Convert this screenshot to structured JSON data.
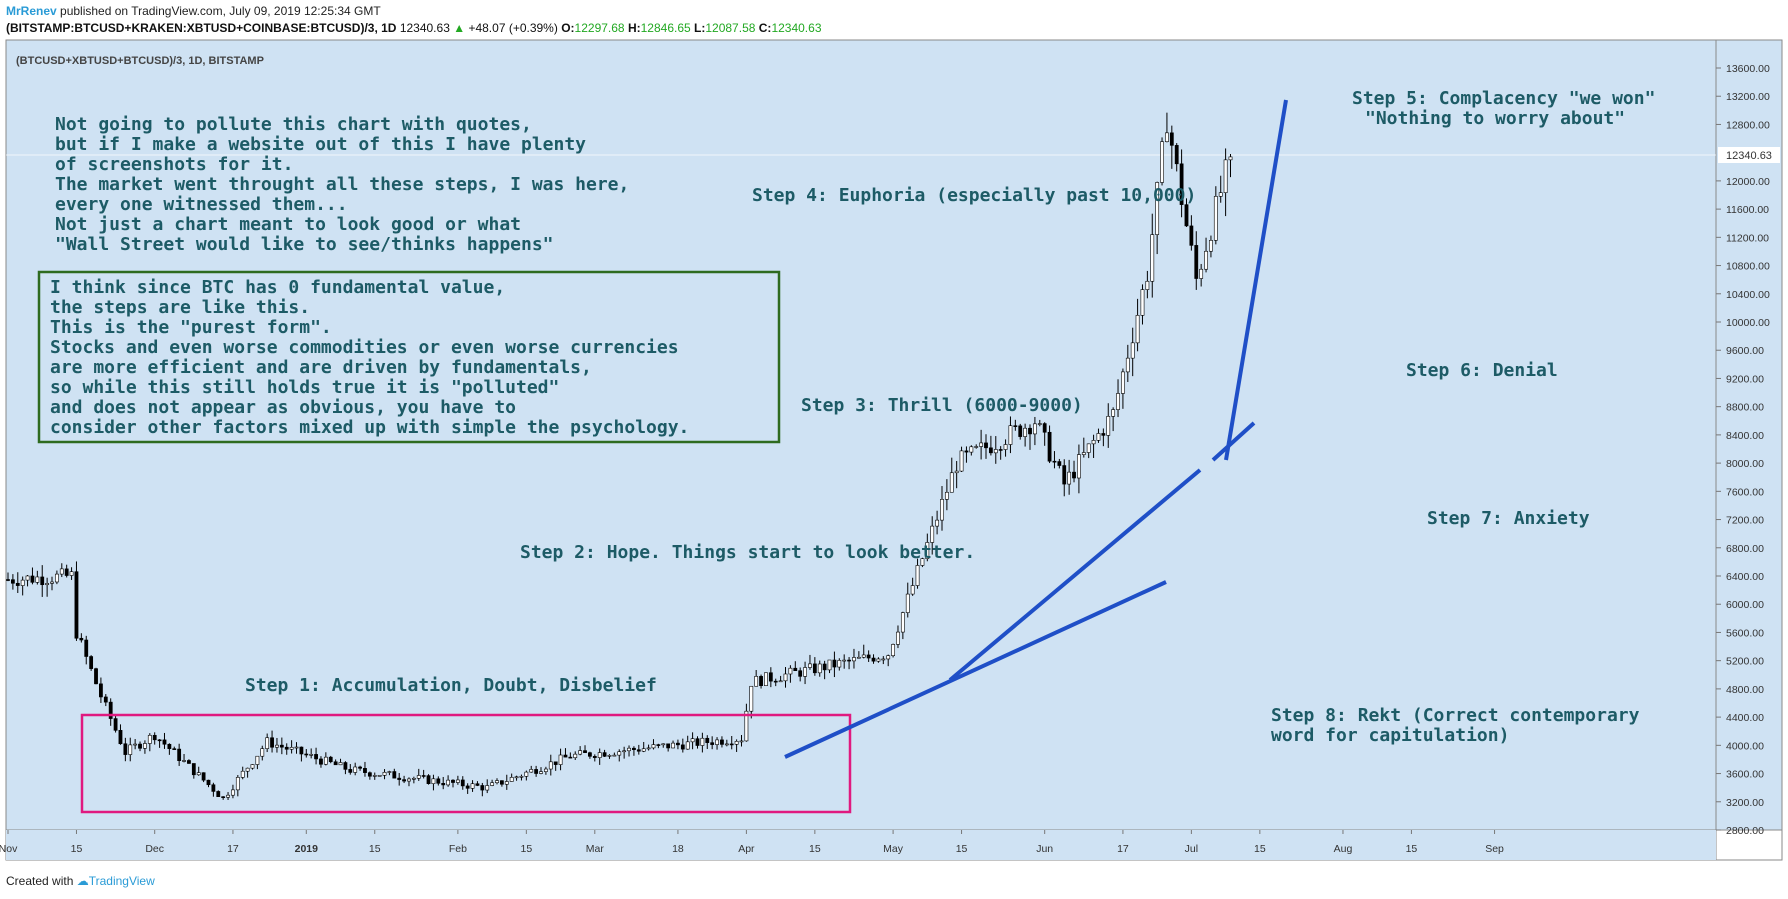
{
  "header": {
    "author": "MrRenev",
    "published": " published on TradingView.com, July 09, 2019 12:25:34 GMT",
    "symbol": "(BITSTAMP:BTCUSD+KRAKEN:XBTUSD+COINBASE:BTCUSD)/3, 1D",
    "last": "12340.63",
    "change": "+48.07 (+0.39%)",
    "o_label": "O:",
    "o_value": "12297.68",
    "h_label": "H:",
    "h_value": "12846.65",
    "l_label": "L:",
    "l_value": "12087.58",
    "c_label": "C:",
    "c_value": "12340.63"
  },
  "footer": {
    "created": "Created with",
    "brand": "TradingView"
  },
  "colors": {
    "panel_bg": "#cfe2f3",
    "candle_up": "#ffffff",
    "candle_down": "#000000",
    "trendline": "#1f4fc7",
    "annotation_text": "#1d5b66",
    "pink_box": "#e0197f",
    "green_box": "#2e6b1f"
  },
  "chart_data": {
    "type": "candlestick",
    "title": "(BTCUSD+XBTUSD+BTCUSD)/3, 1D, BITSTAMP",
    "price_label": "12340.63",
    "ylim": [
      2800,
      13800
    ],
    "grid": false,
    "y_ticks": [
      "13600.00",
      "13200.00",
      "12800.00",
      "12000.00",
      "11600.00",
      "11200.00",
      "10800.00",
      "10400.00",
      "10000.00",
      "9600.00",
      "9200.00",
      "8800.00",
      "8400.00",
      "8000.00",
      "7600.00",
      "7200.00",
      "6800.00",
      "6400.00",
      "6000.00",
      "5600.00",
      "5200.00",
      "4800.00",
      "4400.00",
      "4000.00",
      "3600.00",
      "3200.00",
      "2800.00"
    ],
    "x_ticks": [
      "Nov",
      "15",
      "Dec",
      "17",
      "2019",
      "15",
      "Feb",
      "15",
      "Mar",
      "18",
      "Apr",
      "15",
      "May",
      "15",
      "Jun",
      "17",
      "Jul",
      "15",
      "Aug",
      "15",
      "Sep"
    ],
    "series_key_points": [
      {
        "date": "2018-11-01",
        "close": 6350
      },
      {
        "date": "2018-11-14",
        "close": 6400
      },
      {
        "date": "2018-11-15",
        "close": 5600
      },
      {
        "date": "2018-11-20",
        "close": 4700
      },
      {
        "date": "2018-11-25",
        "close": 3900
      },
      {
        "date": "2018-12-01",
        "close": 4150
      },
      {
        "date": "2018-12-15",
        "close": 3250
      },
      {
        "date": "2018-12-24",
        "close": 4050
      },
      {
        "date": "2019-01-10",
        "close": 3650
      },
      {
        "date": "2019-02-07",
        "close": 3400
      },
      {
        "date": "2019-02-24",
        "close": 3850
      },
      {
        "date": "2019-03-31",
        "close": 4100
      },
      {
        "date": "2019-04-02",
        "close": 4900
      },
      {
        "date": "2019-04-30",
        "close": 5300
      },
      {
        "date": "2019-05-14",
        "close": 8000
      },
      {
        "date": "2019-05-30",
        "close": 8600
      },
      {
        "date": "2019-06-05",
        "close": 7700
      },
      {
        "date": "2019-06-15",
        "close": 8700
      },
      {
        "date": "2019-06-22",
        "close": 10700
      },
      {
        "date": "2019-06-26",
        "close": 12900
      },
      {
        "date": "2019-07-02",
        "close": 10600
      },
      {
        "date": "2019-07-09",
        "close": 12340
      }
    ],
    "annotations": {
      "intro_lines": [
        "Not going to pollute this chart with quotes,",
        "but if I make a website out of this I have plenty",
        "of screenshots for it.",
        "The market went throught all these steps, I was here,",
        "every one witnessed them...",
        "Not just a chart meant to look good or what",
        "\"Wall Street would like to see/thinks happens\""
      ],
      "boxed_lines": [
        "I think since BTC has 0 fundamental value,",
        "the steps are like this.",
        "This is the \"purest form\".",
        "Stocks and even worse commodities or even worse currencies",
        "are more efficient and are driven by fundamentals,",
        "so while this still holds true it is \"polluted\"",
        "and does not appear as obvious, you have to",
        "consider other factors mixed up with simple the psychology."
      ],
      "step1": "Step 1: Accumulation, Doubt, Disbelief",
      "step2": "Step 2: Hope. Things start to look better.",
      "step3": "Step 3: Thrill (6000-9000)",
      "step4": "Step 4: Euphoria (especially past 10,000)",
      "step5_line1": "Step 5: Complacency \"we won\"",
      "step5_line2": "\"Nothing to worry about\"",
      "step6": "Step 6: Denial",
      "step7": "Step 7: Anxiety",
      "step8_line1": "Step 8: Rekt (Correct contemporary",
      "step8_line2": "word for capitulation)"
    }
  }
}
